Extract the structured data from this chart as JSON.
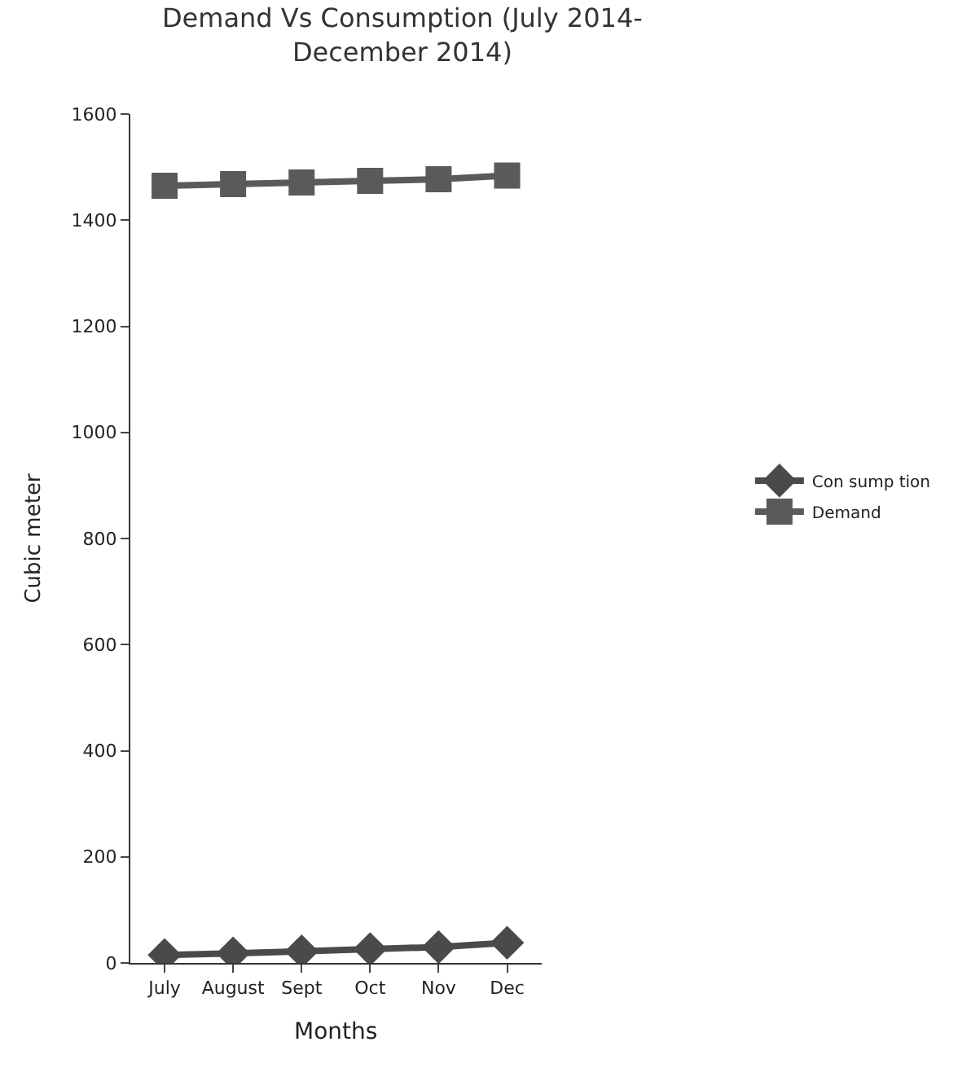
{
  "chart_data": {
    "type": "line",
    "title": "Demand Vs Consumption (July 2014-\nDecember 2014)",
    "xlabel": "Months",
    "ylabel": "Cubic meter",
    "categories": [
      "July",
      "August",
      "Sept",
      "Oct",
      "Nov",
      "Dec"
    ],
    "series": [
      {
        "name": "Con sump tion",
        "color": "#4a4a4a",
        "marker": "diamond",
        "values": [
          15,
          18,
          22,
          26,
          30,
          38
        ]
      },
      {
        "name": "Demand",
        "color": "#5a5a5a",
        "marker": "square",
        "values": [
          1465,
          1468,
          1471,
          1474,
          1477,
          1484
        ]
      }
    ],
    "ylim": [
      0,
      1600
    ],
    "yticks": [
      0,
      200,
      400,
      600,
      800,
      1000,
      1200,
      1400,
      1600
    ],
    "legend": "right"
  }
}
